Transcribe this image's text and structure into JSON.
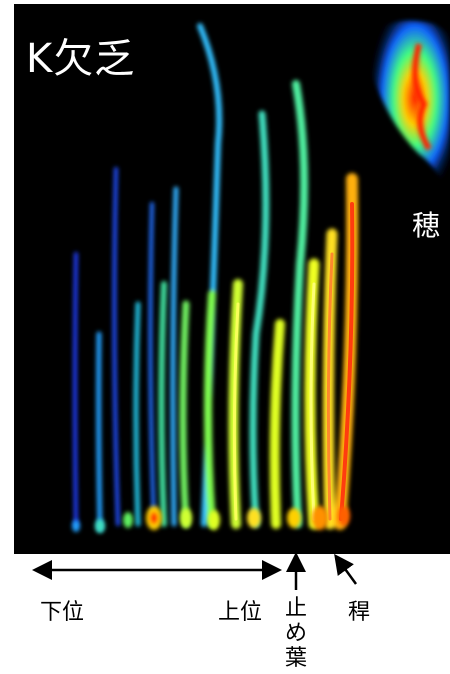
{
  "figure": {
    "condition_label": "K欠乏",
    "panicle_label": "穂"
  },
  "captions": {
    "lower": "下位",
    "upper": "上位",
    "flag_leaf": "止め葉",
    "stem": "稈"
  },
  "colors": {
    "background": "#000000",
    "low": "#1a2cff",
    "mid": "#00e0c0",
    "high": "#e8ff20",
    "peak": "#ff2a00"
  }
}
